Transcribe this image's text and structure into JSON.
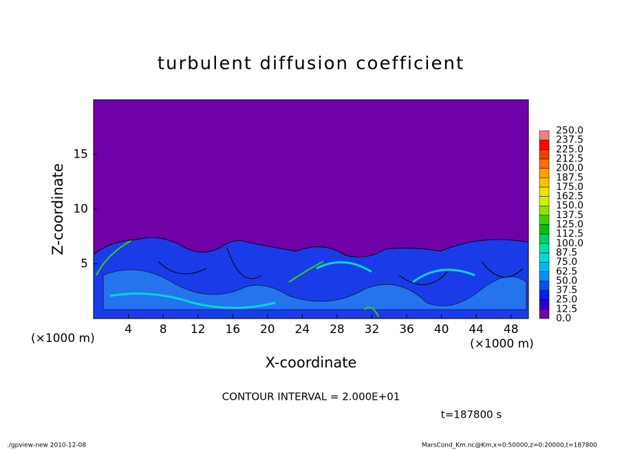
{
  "chart_data": {
    "type": "contour-fill",
    "title": "turbulent diffusion coefficient",
    "x_label": "X-coordinate",
    "y_label": "Z-coordinate",
    "x_unit": "(×1000 m)",
    "y_unit": "(×1000 m)",
    "xlim": [
      0,
      50
    ],
    "xticks": [
      4,
      8,
      12,
      16,
      20,
      24,
      28,
      32,
      36,
      40,
      44,
      48
    ],
    "ylim": [
      0,
      20
    ],
    "yticks": [
      5,
      10,
      15
    ],
    "levels": [
      {
        "value": 0,
        "label": "0.0"
      },
      12.5,
      {
        "value": 25,
        "label": "25.0"
      },
      37.5,
      {
        "value": 50,
        "label": "50.0"
      },
      62.5,
      {
        "value": 75,
        "label": "75.0"
      },
      87.5,
      {
        "value": 100,
        "label": "100.0"
      },
      112.5,
      {
        "value": 125,
        "label": "125.0"
      },
      137.5,
      {
        "value": 150,
        "label": "150.0"
      },
      162.5,
      {
        "value": 175,
        "label": "175.0"
      },
      187.5,
      {
        "value": 200,
        "label": "200.0"
      },
      212.5,
      {
        "value": 225,
        "label": "225.0"
      },
      237.5,
      {
        "value": 250,
        "label": "250.0"
      }
    ],
    "colors": [
      "#7000a8",
      "#2a00c8",
      "#0020e8",
      "#0050f0",
      "#0090f0",
      "#00b8f0",
      "#00d8d8",
      "#00e0a0",
      "#00d060",
      "#00c000",
      "#40d000",
      "#90e000",
      "#d0f000",
      "#f0e000",
      "#f8c000",
      "#f8a000",
      "#f87000",
      "#f04000",
      "#f01000",
      "#f08080"
    ],
    "contour_interval": "CONTOUR INTERVAL = 2.000E+01",
    "time": "t=187800 s"
  },
  "footer": {
    "left": "./gpview-new   2010-12-08",
    "right": "MarsCond_Km.nc@Km,x=0:50000,z=0:20000,t=187800"
  }
}
